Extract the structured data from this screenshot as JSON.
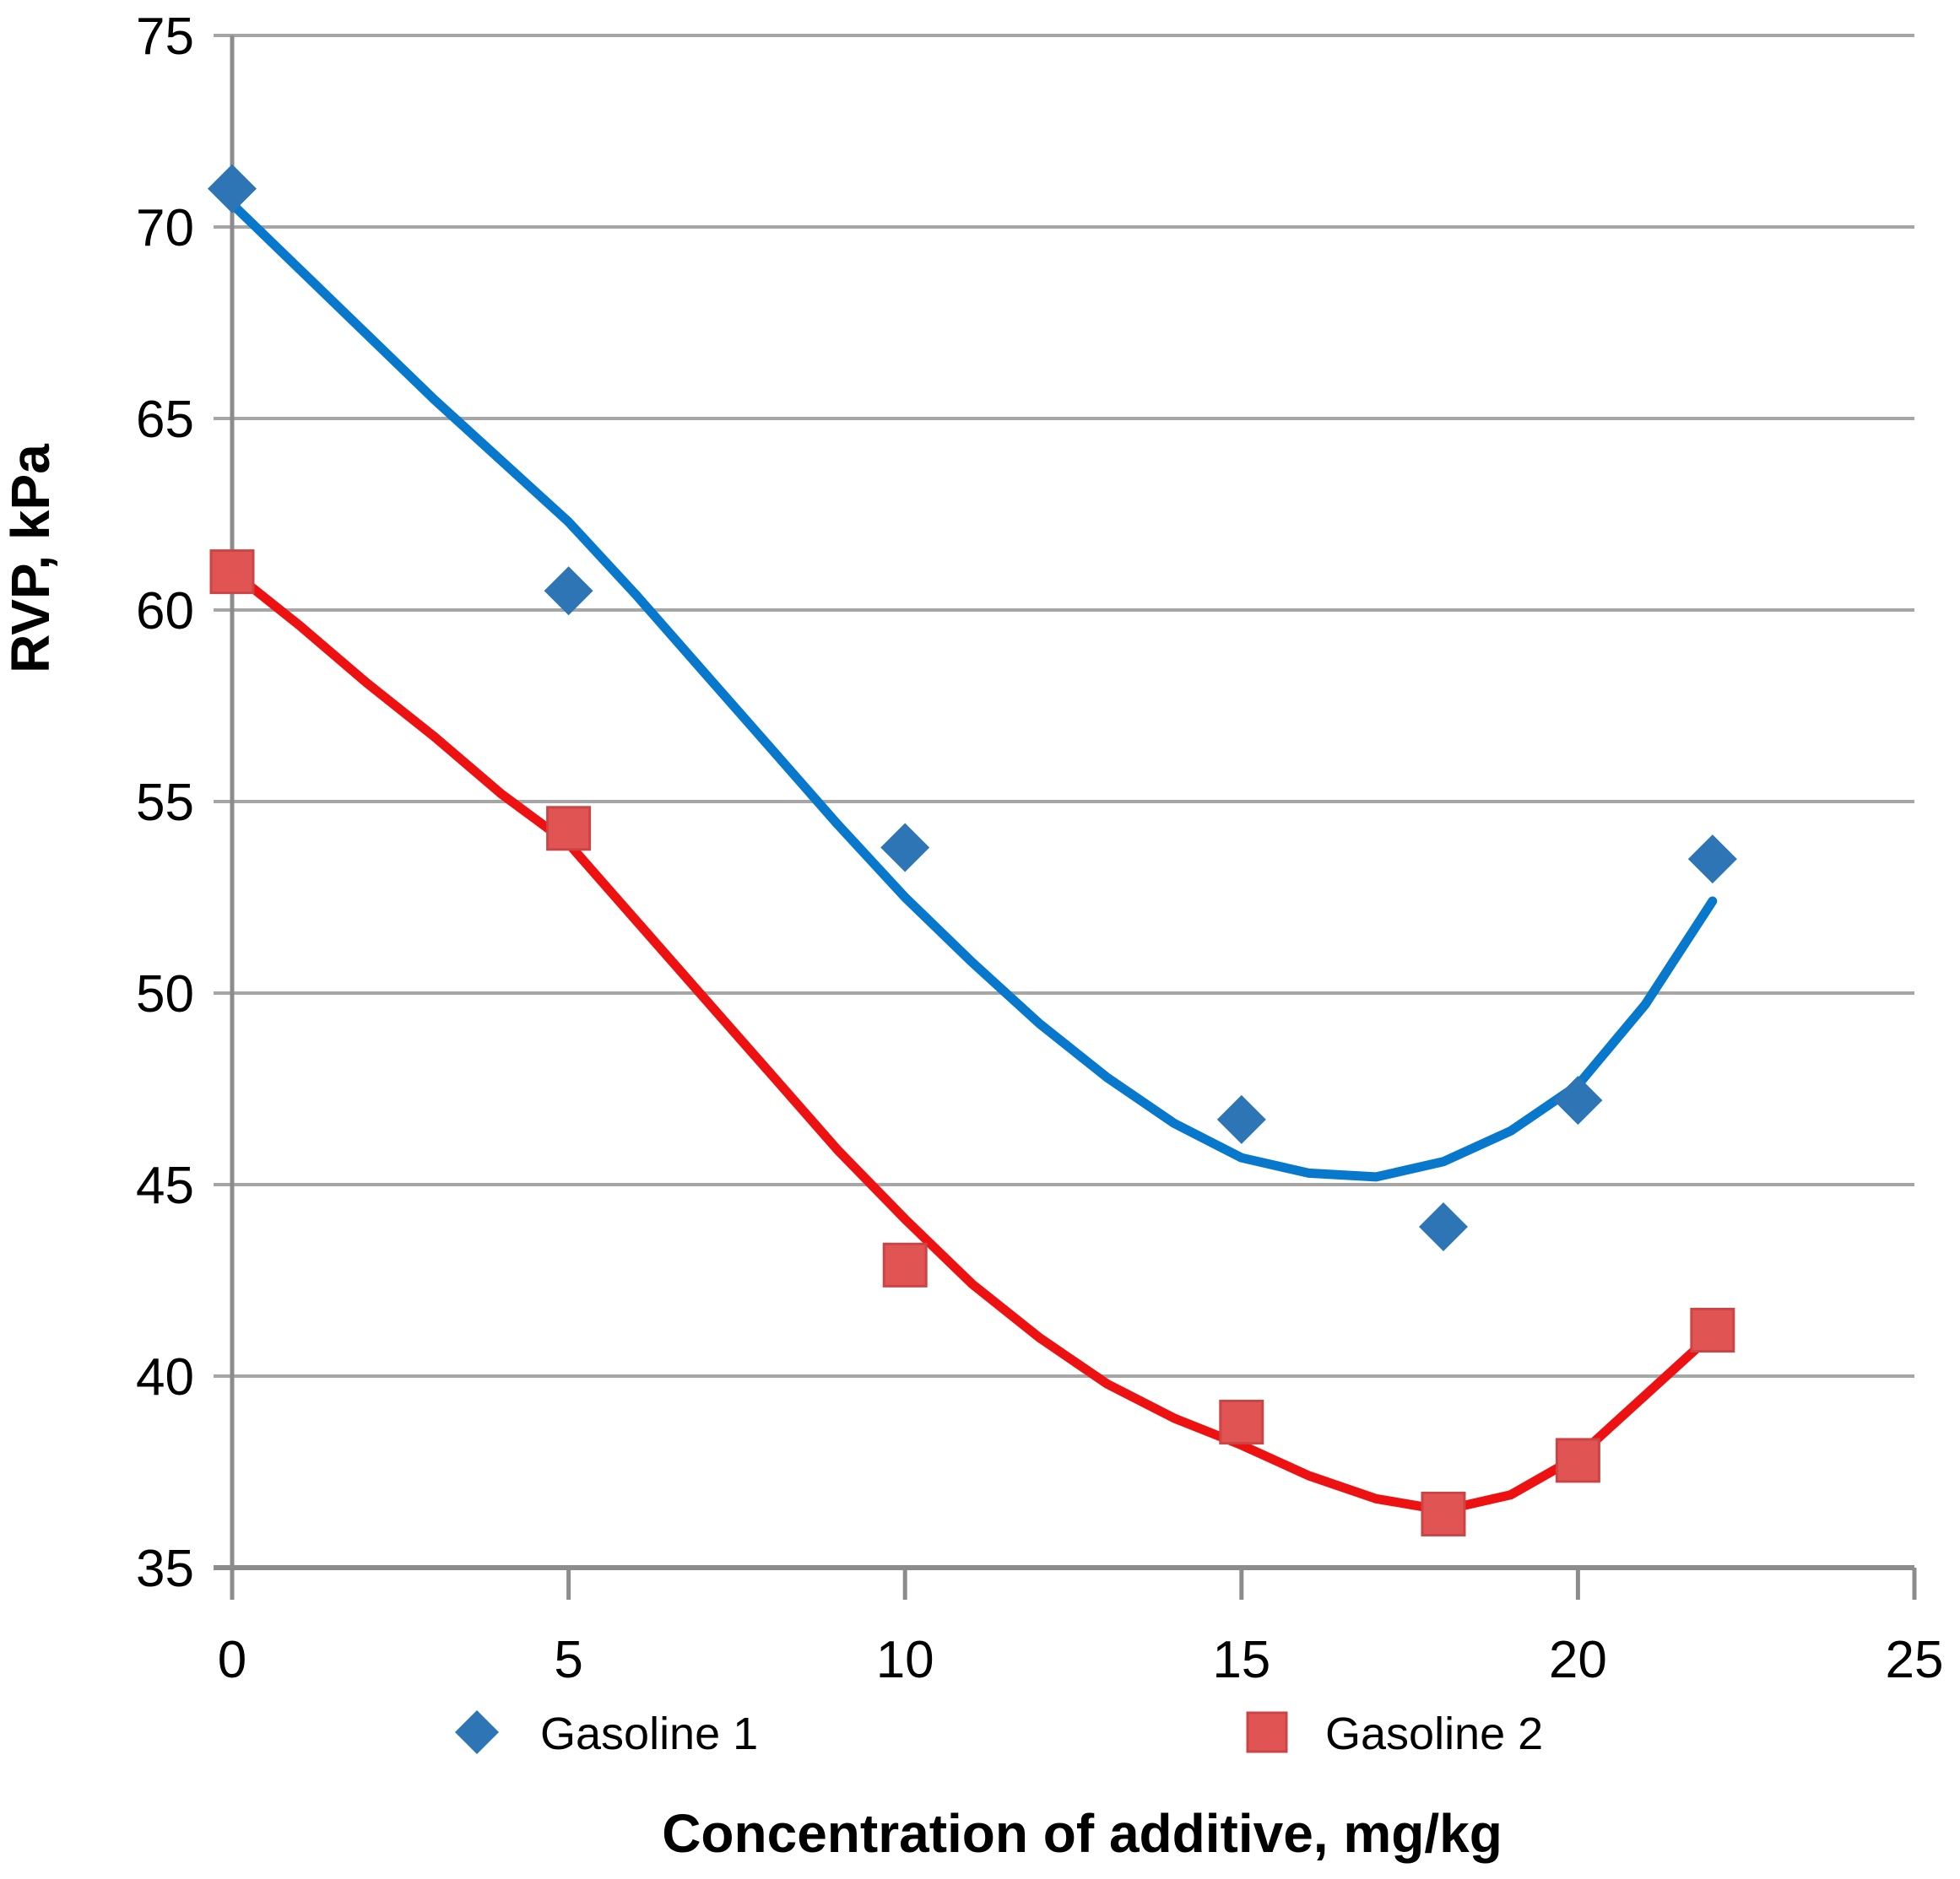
{
  "chart_data": {
    "type": "scatter",
    "title": "",
    "xlabel": "Concentration of additive, mg/kg",
    "ylabel": "RVP, kPa",
    "xlim": [
      0,
      25
    ],
    "ylim": [
      35,
      75
    ],
    "x_ticks": [
      0,
      5,
      10,
      15,
      20,
      25
    ],
    "y_ticks": [
      35,
      40,
      45,
      50,
      55,
      60,
      65,
      70,
      75
    ],
    "grid": "horizontal-only",
    "legend_position": "bottom",
    "series": [
      {
        "name": "Gasoline 1",
        "marker": "diamond",
        "marker_color": "#2E75B6",
        "line_color": "#0878CC",
        "points": [
          [
            0,
            71.0
          ],
          [
            5,
            60.5
          ],
          [
            10,
            53.8
          ],
          [
            15,
            46.7
          ],
          [
            18,
            43.9
          ],
          [
            20,
            47.2
          ],
          [
            22,
            53.5
          ]
        ],
        "trendline": [
          [
            0,
            70.6
          ],
          [
            1,
            68.9
          ],
          [
            2,
            67.2
          ],
          [
            3,
            65.5
          ],
          [
            4,
            63.9
          ],
          [
            5,
            62.3
          ],
          [
            6,
            60.4
          ],
          [
            7,
            58.4
          ],
          [
            8,
            56.4
          ],
          [
            9,
            54.4
          ],
          [
            10,
            52.5
          ],
          [
            11,
            50.8
          ],
          [
            12,
            49.2
          ],
          [
            13,
            47.8
          ],
          [
            14,
            46.6
          ],
          [
            15,
            45.7
          ],
          [
            16,
            45.3
          ],
          [
            17,
            45.2
          ],
          [
            18,
            45.6
          ],
          [
            19,
            46.4
          ],
          [
            20,
            47.6
          ],
          [
            21,
            49.7
          ],
          [
            22,
            52.4
          ]
        ]
      },
      {
        "name": "Gasoline 2",
        "marker": "square",
        "marker_color": "#E05454",
        "marker_edge_color": "#CC4444",
        "line_color": "#EE1111",
        "points": [
          [
            0,
            61.0
          ],
          [
            5,
            54.3
          ],
          [
            10,
            42.9
          ],
          [
            15,
            38.8
          ],
          [
            18,
            36.4
          ],
          [
            20,
            37.8
          ],
          [
            22,
            41.2
          ]
        ],
        "trendline": [
          [
            0,
            61.0
          ],
          [
            1,
            59.6
          ],
          [
            2,
            58.1
          ],
          [
            3,
            56.7
          ],
          [
            4,
            55.2
          ],
          [
            5,
            53.9
          ],
          [
            6,
            51.9
          ],
          [
            7,
            49.9
          ],
          [
            8,
            47.9
          ],
          [
            9,
            45.9
          ],
          [
            10,
            44.1
          ],
          [
            11,
            42.4
          ],
          [
            12,
            41.0
          ],
          [
            13,
            39.8
          ],
          [
            14,
            38.9
          ],
          [
            15,
            38.2
          ],
          [
            16,
            37.4
          ],
          [
            17,
            36.8
          ],
          [
            18,
            36.5
          ],
          [
            19,
            36.9
          ],
          [
            20,
            37.9
          ],
          [
            21,
            39.5
          ],
          [
            22,
            41.1
          ]
        ]
      }
    ]
  },
  "colors": {
    "background": "#FFFFFF",
    "gridline": "#A6A6A6",
    "axis_line": "#8C8C8C",
    "text": "#000000"
  }
}
